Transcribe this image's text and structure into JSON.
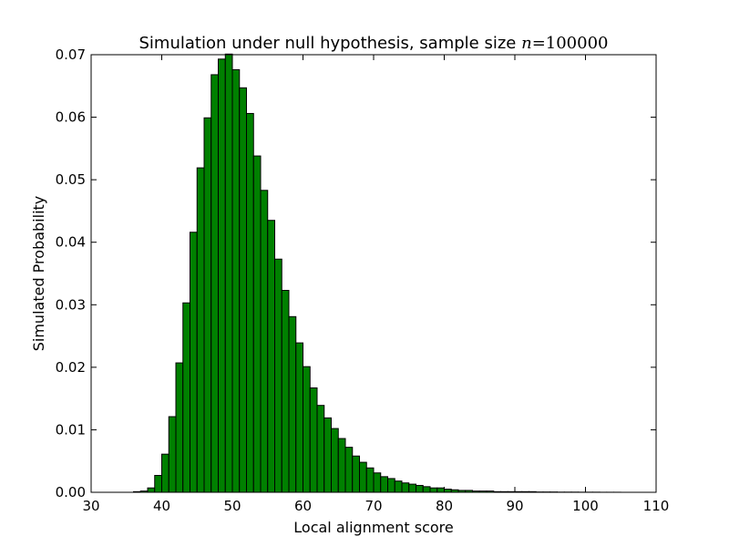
{
  "chart_data": {
    "type": "bar",
    "title_prefix": "Simulation under null hypothesis, sample size ",
    "title_var": "n",
    "title_eq": "=",
    "title_value": "100000",
    "xlabel": "Local alignment score",
    "ylabel": "Simulated Probability",
    "xlim": [
      30,
      110
    ],
    "ylim": [
      0,
      0.07
    ],
    "xticks": [
      30,
      40,
      50,
      60,
      70,
      80,
      90,
      100,
      110
    ],
    "yticks": [
      0.0,
      0.01,
      0.02,
      0.03,
      0.04,
      0.05,
      0.06,
      0.07
    ],
    "xtick_labels": [
      "30",
      "40",
      "50",
      "60",
      "70",
      "80",
      "90",
      "100",
      "110"
    ],
    "ytick_labels": [
      "0.00",
      "0.01",
      "0.02",
      "0.03",
      "0.04",
      "0.05",
      "0.06",
      "0.07"
    ],
    "bin_width": 1,
    "grid": false,
    "colors": {
      "bar_fill": "#008000",
      "bar_edge": "#000000"
    },
    "x": [
      36,
      37,
      38,
      39,
      40,
      41,
      42,
      43,
      44,
      45,
      46,
      47,
      48,
      49,
      50,
      51,
      52,
      53,
      54,
      55,
      56,
      57,
      58,
      59,
      60,
      61,
      62,
      63,
      64,
      65,
      66,
      67,
      68,
      69,
      70,
      71,
      72,
      73,
      74,
      75,
      76,
      77,
      78,
      79,
      80,
      81,
      82,
      83,
      84,
      85,
      86,
      87,
      88,
      89,
      90,
      91,
      92,
      93,
      94,
      95,
      96,
      97,
      98,
      99,
      100,
      101,
      102,
      103,
      104
    ],
    "values": [
      0.0001,
      0.0002,
      0.0007,
      0.0027,
      0.0061,
      0.0121,
      0.0207,
      0.0303,
      0.0416,
      0.0519,
      0.0599,
      0.0668,
      0.0693,
      0.0701,
      0.0676,
      0.0647,
      0.0606,
      0.0538,
      0.0483,
      0.0435,
      0.0373,
      0.0323,
      0.0281,
      0.0239,
      0.0201,
      0.0167,
      0.0139,
      0.0119,
      0.0102,
      0.0086,
      0.0072,
      0.0058,
      0.0048,
      0.0039,
      0.0031,
      0.0025,
      0.0022,
      0.0018,
      0.0015,
      0.0013,
      0.0011,
      0.0009,
      0.0007,
      0.0007,
      0.0005,
      0.0004,
      0.0003,
      0.0003,
      0.0002,
      0.0002,
      0.0002,
      0.0001,
      0.0001,
      0.0001,
      0.0001,
      0.0001,
      0.0001,
      5e-05,
      5e-05,
      5e-05,
      3e-05,
      3e-05,
      3e-05,
      2e-05,
      2e-05,
      2e-05,
      1e-05,
      1e-05,
      1e-05
    ]
  }
}
